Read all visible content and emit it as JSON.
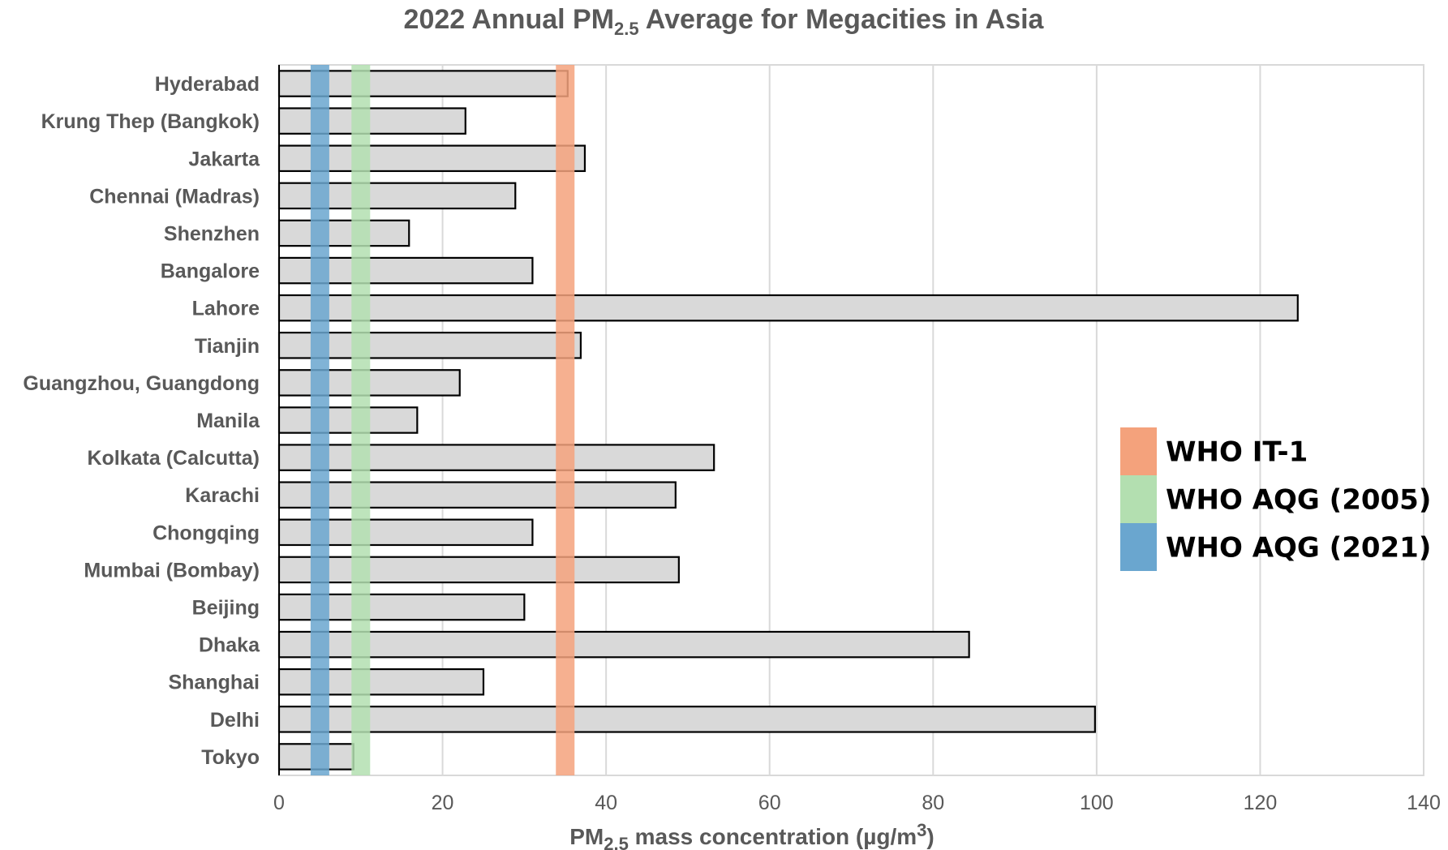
{
  "chart_data": {
    "type": "bar",
    "orientation": "horizontal",
    "title_main": "2022 Annual PM",
    "title_sub": "2.5",
    "title_rest": " Average for Megacities in Asia",
    "xlabel_main": "PM",
    "xlabel_sub": "2.5",
    "xlabel_rest": " mass concentration (µg/m",
    "xlabel_sup": "3",
    "xlabel_end": ")",
    "xlim": [
      0,
      140
    ],
    "xticks": [
      0,
      20,
      40,
      60,
      80,
      100,
      120,
      140
    ],
    "grid": true,
    "categories": [
      "Hyderabad",
      "Krung Thep (Bangkok)",
      "Jakarta",
      "Chennai (Madras)",
      "Shenzhen",
      "Bangalore",
      "Lahore",
      "Tianjin",
      "Guangzhou, Guangdong",
      "Manila",
      "Kolkata (Calcutta)",
      "Karachi",
      "Chongqing",
      "Mumbai (Bombay)",
      "Beijing",
      "Dhaka",
      "Shanghai",
      "Delhi",
      "Tokyo"
    ],
    "values": [
      35.3,
      22.8,
      37.4,
      28.9,
      15.9,
      31.0,
      124.6,
      36.9,
      22.1,
      16.9,
      53.2,
      48.5,
      31.0,
      48.9,
      30.0,
      84.4,
      25.0,
      99.8,
      9.1
    ],
    "bar_color": "#d9d9d9",
    "bar_edge": "#000000",
    "reference_bands": [
      {
        "name": "WHO IT-1",
        "value": 35,
        "color": "#f4a27c"
      },
      {
        "name": "WHO AQG (2005)",
        "value": 10,
        "color": "#b3dfb0"
      },
      {
        "name": "WHO AQG (2021)",
        "value": 5,
        "color": "#6aa6cf"
      }
    ],
    "legend_position": "right"
  }
}
